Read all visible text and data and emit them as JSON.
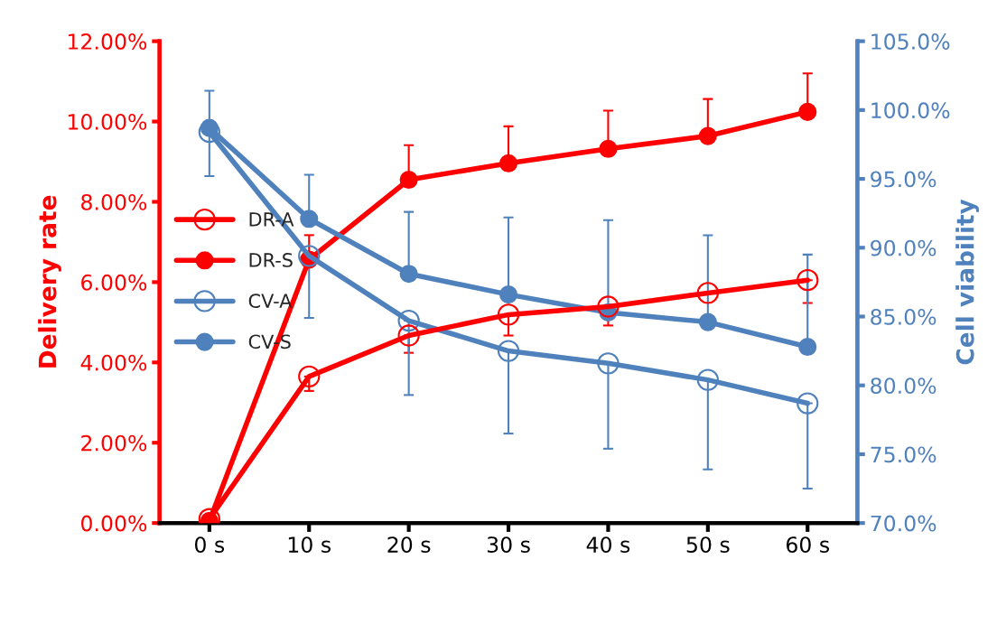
{
  "chart_data": {
    "type": "line",
    "ylabel": "Delivery rate",
    "y2label": "Cell viability",
    "categories": [
      "0 s",
      "10 s",
      "20 s",
      "30 s",
      "40 s",
      "50 s",
      "60 s"
    ],
    "series": [
      {
        "name": "DR-A",
        "color": "#ff0000",
        "marker": "circle-open",
        "values": [
          0.1,
          3.65,
          4.67,
          5.19,
          5.39,
          5.73,
          6.05
        ],
        "errors": [
          null,
          [
            3.29,
            3.65
          ],
          [
            4.24,
            4.67
          ],
          [
            4.67,
            5.19
          ],
          [
            4.92,
            5.39
          ],
          null,
          [
            5.48,
            6.05
          ]
        ]
      },
      {
        "name": "DR-S",
        "color": "#ff0000",
        "values": [
          0.05,
          6.56,
          8.55,
          8.96,
          9.32,
          9.64,
          10.24
        ],
        "errors": [
          null,
          [
            6.56,
            7.17
          ],
          [
            8.55,
            9.41
          ],
          [
            8.96,
            9.88
          ],
          [
            9.32,
            10.27
          ],
          [
            9.64,
            10.56
          ],
          [
            10.24,
            11.2
          ]
        ]
      },
      {
        "name": "CV-A",
        "color": "#4f81bd",
        "marker": "circle-open",
        "axis": "y2",
        "values": [
          98.4,
          89.4,
          84.7,
          82.5,
          81.6,
          80.4,
          78.7
        ],
        "errors": [
          [
            95.2,
            98.4
          ],
          [
            84.9,
            89.4
          ],
          [
            79.3,
            84.7
          ],
          [
            76.5,
            82.5
          ],
          [
            75.4,
            81.6
          ],
          [
            73.9,
            80.4
          ],
          [
            72.5,
            78.7
          ]
        ]
      },
      {
        "name": "CV-S",
        "color": "#4f81bd",
        "axis": "y2",
        "values": [
          98.7,
          92.1,
          88.1,
          86.6,
          85.3,
          84.6,
          82.8
        ],
        "errors": [
          [
            98.7,
            101.4
          ],
          [
            92.1,
            95.3
          ],
          [
            88.1,
            92.6
          ],
          [
            86.6,
            92.2
          ],
          [
            85.3,
            92.0
          ],
          [
            84.6,
            90.9
          ],
          [
            82.8,
            89.5
          ]
        ]
      }
    ],
    "ylim": [
      0,
      12
    ],
    "yticks": [
      {
        "value": 0,
        "label": "0.00%"
      },
      {
        "value": 2,
        "label": "2.00%"
      },
      {
        "value": 4,
        "label": "4.00%"
      },
      {
        "value": 6,
        "label": "6.00%"
      },
      {
        "value": 8,
        "label": "8.00%"
      },
      {
        "value": 10,
        "label": "10.00%"
      },
      {
        "value": 12,
        "label": "12.00%"
      }
    ],
    "y2lim": [
      70,
      105
    ],
    "y2ticks": [
      {
        "value": 70,
        "label": "70.0%"
      },
      {
        "value": 75,
        "label": "75.0%"
      },
      {
        "value": 80,
        "label": "80.0%"
      },
      {
        "value": 85,
        "label": "85.0%"
      },
      {
        "value": 90,
        "label": "90.0%"
      },
      {
        "value": 95,
        "label": "95.0%"
      },
      {
        "value": 100,
        "label": "100.0%"
      },
      {
        "value": 105,
        "label": "105.0%"
      }
    ],
    "marker": "circle",
    "line_style": "solid",
    "grid": false,
    "legend": "center left"
  }
}
